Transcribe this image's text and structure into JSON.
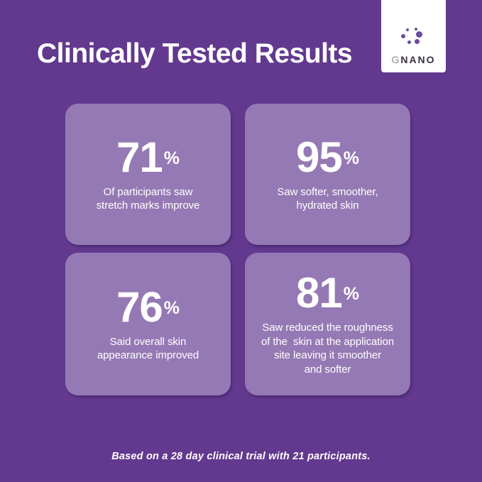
{
  "colors": {
    "background": "#62398F",
    "card": "#9579B4",
    "text": "#FFFFFF",
    "logo_plate": "#FFFFFF",
    "logo_dot_purple": "#6B4C9E",
    "logo_dot_dark": "#3A3142",
    "logo_g_gray": "#8E8E93"
  },
  "header": {
    "title": "Clinically Tested Results",
    "logo": {
      "brand_prefix": "G",
      "brand_rest": "NANO"
    }
  },
  "cards": [
    {
      "value": "71",
      "unit": "%",
      "description": "Of participants saw\nstretch marks improve"
    },
    {
      "value": "95",
      "unit": "%",
      "description": "Saw softer, smoother,\nhydrated skin"
    },
    {
      "value": "76",
      "unit": "%",
      "description": "Said overall skin\nappearance improved"
    },
    {
      "value": "81",
      "unit": "%",
      "description": "Saw reduced the roughness\nof the  skin at the application\nsite leaving it smoother\nand softer"
    }
  ],
  "footer": {
    "note": "Based on a 28 day clinical trial with 21 participants."
  }
}
